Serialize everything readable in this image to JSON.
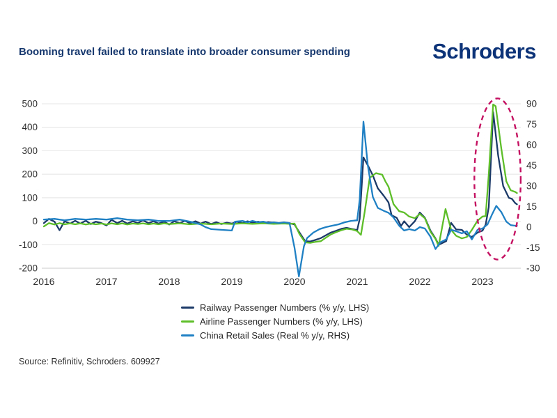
{
  "header": {
    "title": "Booming travel failed to translate into broader consumer spending",
    "logo_text": "Schroders"
  },
  "source_note": "Source: Refinitiv, Schroders. 609927",
  "chart_data": {
    "type": "line",
    "title": "Booming travel failed to translate into broader consumer spending",
    "grid": "horizontal-only",
    "legend_position": "bottom-center",
    "axes": {
      "x": {
        "start": 2016,
        "end": 2023.58,
        "tick_labels": [
          "2016",
          "2017",
          "2018",
          "2019",
          "2020",
          "2021",
          "2022",
          "2023"
        ]
      },
      "left": {
        "min": -200,
        "max": 500,
        "tick_step": 100,
        "tick_labels": [
          "500",
          "400",
          "300",
          "200",
          "100",
          "0",
          "-100",
          "-200"
        ]
      },
      "right": {
        "min": -30,
        "max": 90,
        "tick_step": 15,
        "tick_labels": [
          "90",
          "75",
          "60",
          "45",
          "30",
          "15",
          "0",
          "-15",
          "-30"
        ]
      }
    },
    "series": [
      {
        "name": "Railway Passenger Numbers (% y/y, LHS)",
        "axis": "left",
        "color": "#1c3a68",
        "points": [
          [
            2016.0,
            -8
          ],
          [
            2016.08,
            10
          ],
          [
            2016.17,
            -2
          ],
          [
            2016.25,
            -38
          ],
          [
            2016.33,
            0
          ],
          [
            2016.42,
            -10
          ],
          [
            2016.5,
            2
          ],
          [
            2016.58,
            -10
          ],
          [
            2016.67,
            2
          ],
          [
            2016.75,
            -12
          ],
          [
            2016.83,
            -2
          ],
          [
            2016.92,
            -8
          ],
          [
            2017.0,
            -18
          ],
          [
            2017.08,
            6
          ],
          [
            2017.17,
            -8
          ],
          [
            2017.25,
            2
          ],
          [
            2017.33,
            -10
          ],
          [
            2017.42,
            0
          ],
          [
            2017.5,
            -8
          ],
          [
            2017.58,
            4
          ],
          [
            2017.67,
            -8
          ],
          [
            2017.75,
            0
          ],
          [
            2017.83,
            -10
          ],
          [
            2017.92,
            -2
          ],
          [
            2018.0,
            -14
          ],
          [
            2018.08,
            0
          ],
          [
            2018.17,
            -8
          ],
          [
            2018.25,
            2
          ],
          [
            2018.33,
            -8
          ],
          [
            2018.42,
            0
          ],
          [
            2018.5,
            -10
          ],
          [
            2018.58,
            -2
          ],
          [
            2018.67,
            -12
          ],
          [
            2018.75,
            -4
          ],
          [
            2018.83,
            -12
          ],
          [
            2018.92,
            -6
          ],
          [
            2019.0,
            -10
          ],
          [
            2019.08,
            -2
          ],
          [
            2019.17,
            -8
          ],
          [
            2019.25,
            0
          ],
          [
            2019.33,
            -6
          ],
          [
            2019.42,
            -2
          ],
          [
            2019.5,
            -8
          ],
          [
            2019.58,
            -4
          ],
          [
            2019.67,
            -6
          ],
          [
            2019.75,
            -10
          ],
          [
            2019.83,
            -6
          ],
          [
            2019.92,
            -8
          ],
          [
            2020.0,
            -14
          ],
          [
            2020.08,
            -48
          ],
          [
            2020.17,
            -85
          ],
          [
            2020.25,
            -86
          ],
          [
            2020.33,
            -80
          ],
          [
            2020.42,
            -72
          ],
          [
            2020.5,
            -60
          ],
          [
            2020.58,
            -48
          ],
          [
            2020.67,
            -40
          ],
          [
            2020.75,
            -32
          ],
          [
            2020.83,
            -28
          ],
          [
            2020.92,
            -33
          ],
          [
            2021.0,
            -38
          ],
          [
            2021.04,
            10
          ],
          [
            2021.1,
            272
          ],
          [
            2021.17,
            238
          ],
          [
            2021.25,
            195
          ],
          [
            2021.33,
            140
          ],
          [
            2021.42,
            110
          ],
          [
            2021.5,
            80
          ],
          [
            2021.55,
            25
          ],
          [
            2021.63,
            15
          ],
          [
            2021.7,
            -20
          ],
          [
            2021.75,
            0
          ],
          [
            2021.83,
            -25
          ],
          [
            2021.92,
            0
          ],
          [
            2022.0,
            37
          ],
          [
            2022.08,
            15
          ],
          [
            2022.17,
            -40
          ],
          [
            2022.25,
            -73
          ],
          [
            2022.3,
            -100
          ],
          [
            2022.42,
            -85
          ],
          [
            2022.5,
            -7
          ],
          [
            2022.58,
            -35
          ],
          [
            2022.67,
            -37
          ],
          [
            2022.75,
            -57
          ],
          [
            2022.83,
            -67
          ],
          [
            2022.92,
            -48
          ],
          [
            2023.0,
            -40
          ],
          [
            2023.05,
            -15
          ],
          [
            2023.1,
            60
          ],
          [
            2023.17,
            465
          ],
          [
            2023.25,
            280
          ],
          [
            2023.33,
            150
          ],
          [
            2023.42,
            100
          ],
          [
            2023.47,
            95
          ],
          [
            2023.52,
            78
          ],
          [
            2023.55,
            72
          ]
        ]
      },
      {
        "name": "Airline Passenger Numbers (% y/y, LHS)",
        "axis": "left",
        "color": "#5dbe29",
        "points": [
          [
            2016.0,
            -22
          ],
          [
            2016.08,
            -8
          ],
          [
            2016.17,
            -14
          ],
          [
            2016.25,
            -8
          ],
          [
            2016.33,
            -13
          ],
          [
            2016.42,
            -9
          ],
          [
            2016.5,
            -13
          ],
          [
            2016.58,
            -9
          ],
          [
            2016.67,
            -14
          ],
          [
            2016.75,
            -10
          ],
          [
            2016.83,
            -13
          ],
          [
            2016.92,
            -10
          ],
          [
            2017.0,
            -14
          ],
          [
            2017.08,
            -9
          ],
          [
            2017.17,
            -13
          ],
          [
            2017.25,
            -9
          ],
          [
            2017.33,
            -14
          ],
          [
            2017.42,
            -10
          ],
          [
            2017.5,
            -12
          ],
          [
            2017.58,
            -9
          ],
          [
            2017.67,
            -13
          ],
          [
            2017.75,
            -10
          ],
          [
            2017.83,
            -13
          ],
          [
            2017.92,
            -9
          ],
          [
            2018.0,
            -12
          ],
          [
            2018.17,
            -9
          ],
          [
            2018.33,
            -13
          ],
          [
            2018.5,
            -10
          ],
          [
            2018.67,
            -13
          ],
          [
            2018.83,
            -10
          ],
          [
            2019.0,
            -12
          ],
          [
            2019.17,
            -9
          ],
          [
            2019.33,
            -11
          ],
          [
            2019.5,
            -9
          ],
          [
            2019.67,
            -11
          ],
          [
            2019.83,
            -10
          ],
          [
            2019.92,
            -11
          ],
          [
            2020.0,
            -10
          ],
          [
            2020.08,
            -55
          ],
          [
            2020.17,
            -90
          ],
          [
            2020.25,
            -92
          ],
          [
            2020.33,
            -88
          ],
          [
            2020.42,
            -85
          ],
          [
            2020.5,
            -70
          ],
          [
            2020.58,
            -56
          ],
          [
            2020.67,
            -46
          ],
          [
            2020.75,
            -38
          ],
          [
            2020.83,
            -32
          ],
          [
            2020.92,
            -35
          ],
          [
            2021.0,
            -42
          ],
          [
            2021.06,
            -58
          ],
          [
            2021.12,
            40
          ],
          [
            2021.2,
            185
          ],
          [
            2021.3,
            205
          ],
          [
            2021.4,
            198
          ],
          [
            2021.45,
            170
          ],
          [
            2021.5,
            147
          ],
          [
            2021.58,
            73
          ],
          [
            2021.67,
            43
          ],
          [
            2021.75,
            37
          ],
          [
            2021.83,
            20
          ],
          [
            2021.92,
            13
          ],
          [
            2022.0,
            31
          ],
          [
            2022.08,
            13
          ],
          [
            2022.17,
            -45
          ],
          [
            2022.25,
            -75
          ],
          [
            2022.3,
            -105
          ],
          [
            2022.41,
            52
          ],
          [
            2022.5,
            -37
          ],
          [
            2022.58,
            -62
          ],
          [
            2022.67,
            -73
          ],
          [
            2022.75,
            -67
          ],
          [
            2022.83,
            -37
          ],
          [
            2022.92,
            2
          ],
          [
            2023.0,
            20
          ],
          [
            2023.05,
            22
          ],
          [
            2023.1,
            200
          ],
          [
            2023.17,
            497
          ],
          [
            2023.21,
            490
          ],
          [
            2023.3,
            310
          ],
          [
            2023.38,
            170
          ],
          [
            2023.45,
            132
          ],
          [
            2023.52,
            125
          ],
          [
            2023.55,
            120
          ]
        ]
      },
      {
        "name": "China Retail Sales (Real % y/y, RHS)",
        "axis": "right",
        "color": "#1f80c4",
        "points": [
          [
            2016.0,
            5.5
          ],
          [
            2016.17,
            6
          ],
          [
            2016.33,
            5
          ],
          [
            2016.5,
            6
          ],
          [
            2016.67,
            5.5
          ],
          [
            2016.83,
            6
          ],
          [
            2017.0,
            5.5
          ],
          [
            2017.17,
            6.5
          ],
          [
            2017.33,
            5.5
          ],
          [
            2017.5,
            5
          ],
          [
            2017.67,
            5.5
          ],
          [
            2017.83,
            4.5
          ],
          [
            2018.0,
            4.5
          ],
          [
            2018.17,
            5.5
          ],
          [
            2018.33,
            4
          ],
          [
            2018.5,
            2
          ],
          [
            2018.58,
            0
          ],
          [
            2018.67,
            -1.5
          ],
          [
            2018.83,
            -2
          ],
          [
            2019.0,
            -2.5
          ],
          [
            2019.05,
            4
          ],
          [
            2019.17,
            4.5
          ],
          [
            2019.25,
            3.5
          ],
          [
            2019.33,
            4.5
          ],
          [
            2019.42,
            3.5
          ],
          [
            2019.5,
            4
          ],
          [
            2019.58,
            3
          ],
          [
            2019.67,
            3.5
          ],
          [
            2019.75,
            3
          ],
          [
            2019.83,
            3.5
          ],
          [
            2019.92,
            3
          ],
          [
            2020.0,
            -15
          ],
          [
            2020.07,
            -36
          ],
          [
            2020.15,
            -14
          ],
          [
            2020.2,
            -8
          ],
          [
            2020.3,
            -4
          ],
          [
            2020.4,
            -1.5
          ],
          [
            2020.5,
            0
          ],
          [
            2020.6,
            1
          ],
          [
            2020.7,
            2
          ],
          [
            2020.8,
            3.5
          ],
          [
            2020.9,
            4.5
          ],
          [
            2021.0,
            5
          ],
          [
            2021.04,
            20
          ],
          [
            2021.1,
            77
          ],
          [
            2021.17,
            45
          ],
          [
            2021.25,
            22
          ],
          [
            2021.33,
            14
          ],
          [
            2021.42,
            12
          ],
          [
            2021.5,
            10.5
          ],
          [
            2021.58,
            7
          ],
          [
            2021.67,
            1
          ],
          [
            2021.75,
            -2.5
          ],
          [
            2021.83,
            -1.5
          ],
          [
            2021.92,
            -2.5
          ],
          [
            2022.0,
            0
          ],
          [
            2022.08,
            -1
          ],
          [
            2022.17,
            -7
          ],
          [
            2022.25,
            -16
          ],
          [
            2022.33,
            -11
          ],
          [
            2022.42,
            -9
          ],
          [
            2022.5,
            -2
          ],
          [
            2022.58,
            -3
          ],
          [
            2022.67,
            -4.5
          ],
          [
            2022.75,
            -3
          ],
          [
            2022.83,
            -9
          ],
          [
            2022.92,
            -2
          ],
          [
            2023.0,
            -1
          ],
          [
            2023.08,
            2
          ],
          [
            2023.15,
            9
          ],
          [
            2023.22,
            15.5
          ],
          [
            2023.3,
            11
          ],
          [
            2023.38,
            4
          ],
          [
            2023.45,
            1.5
          ],
          [
            2023.52,
            1
          ],
          [
            2023.55,
            1
          ]
        ]
      }
    ],
    "annotation": {
      "shape": "dashed-ellipse",
      "color": "#c51161",
      "center_year": 2023.24,
      "center_value_lhs": 180,
      "radius_years": 0.37,
      "radius_lhs": 343
    },
    "colors": {
      "gridline": "#e9e9e9",
      "baseline": "#d5d5d5",
      "tick_label": "#2d2d2d",
      "title": "#16386e",
      "logo": "#0c3278"
    }
  }
}
